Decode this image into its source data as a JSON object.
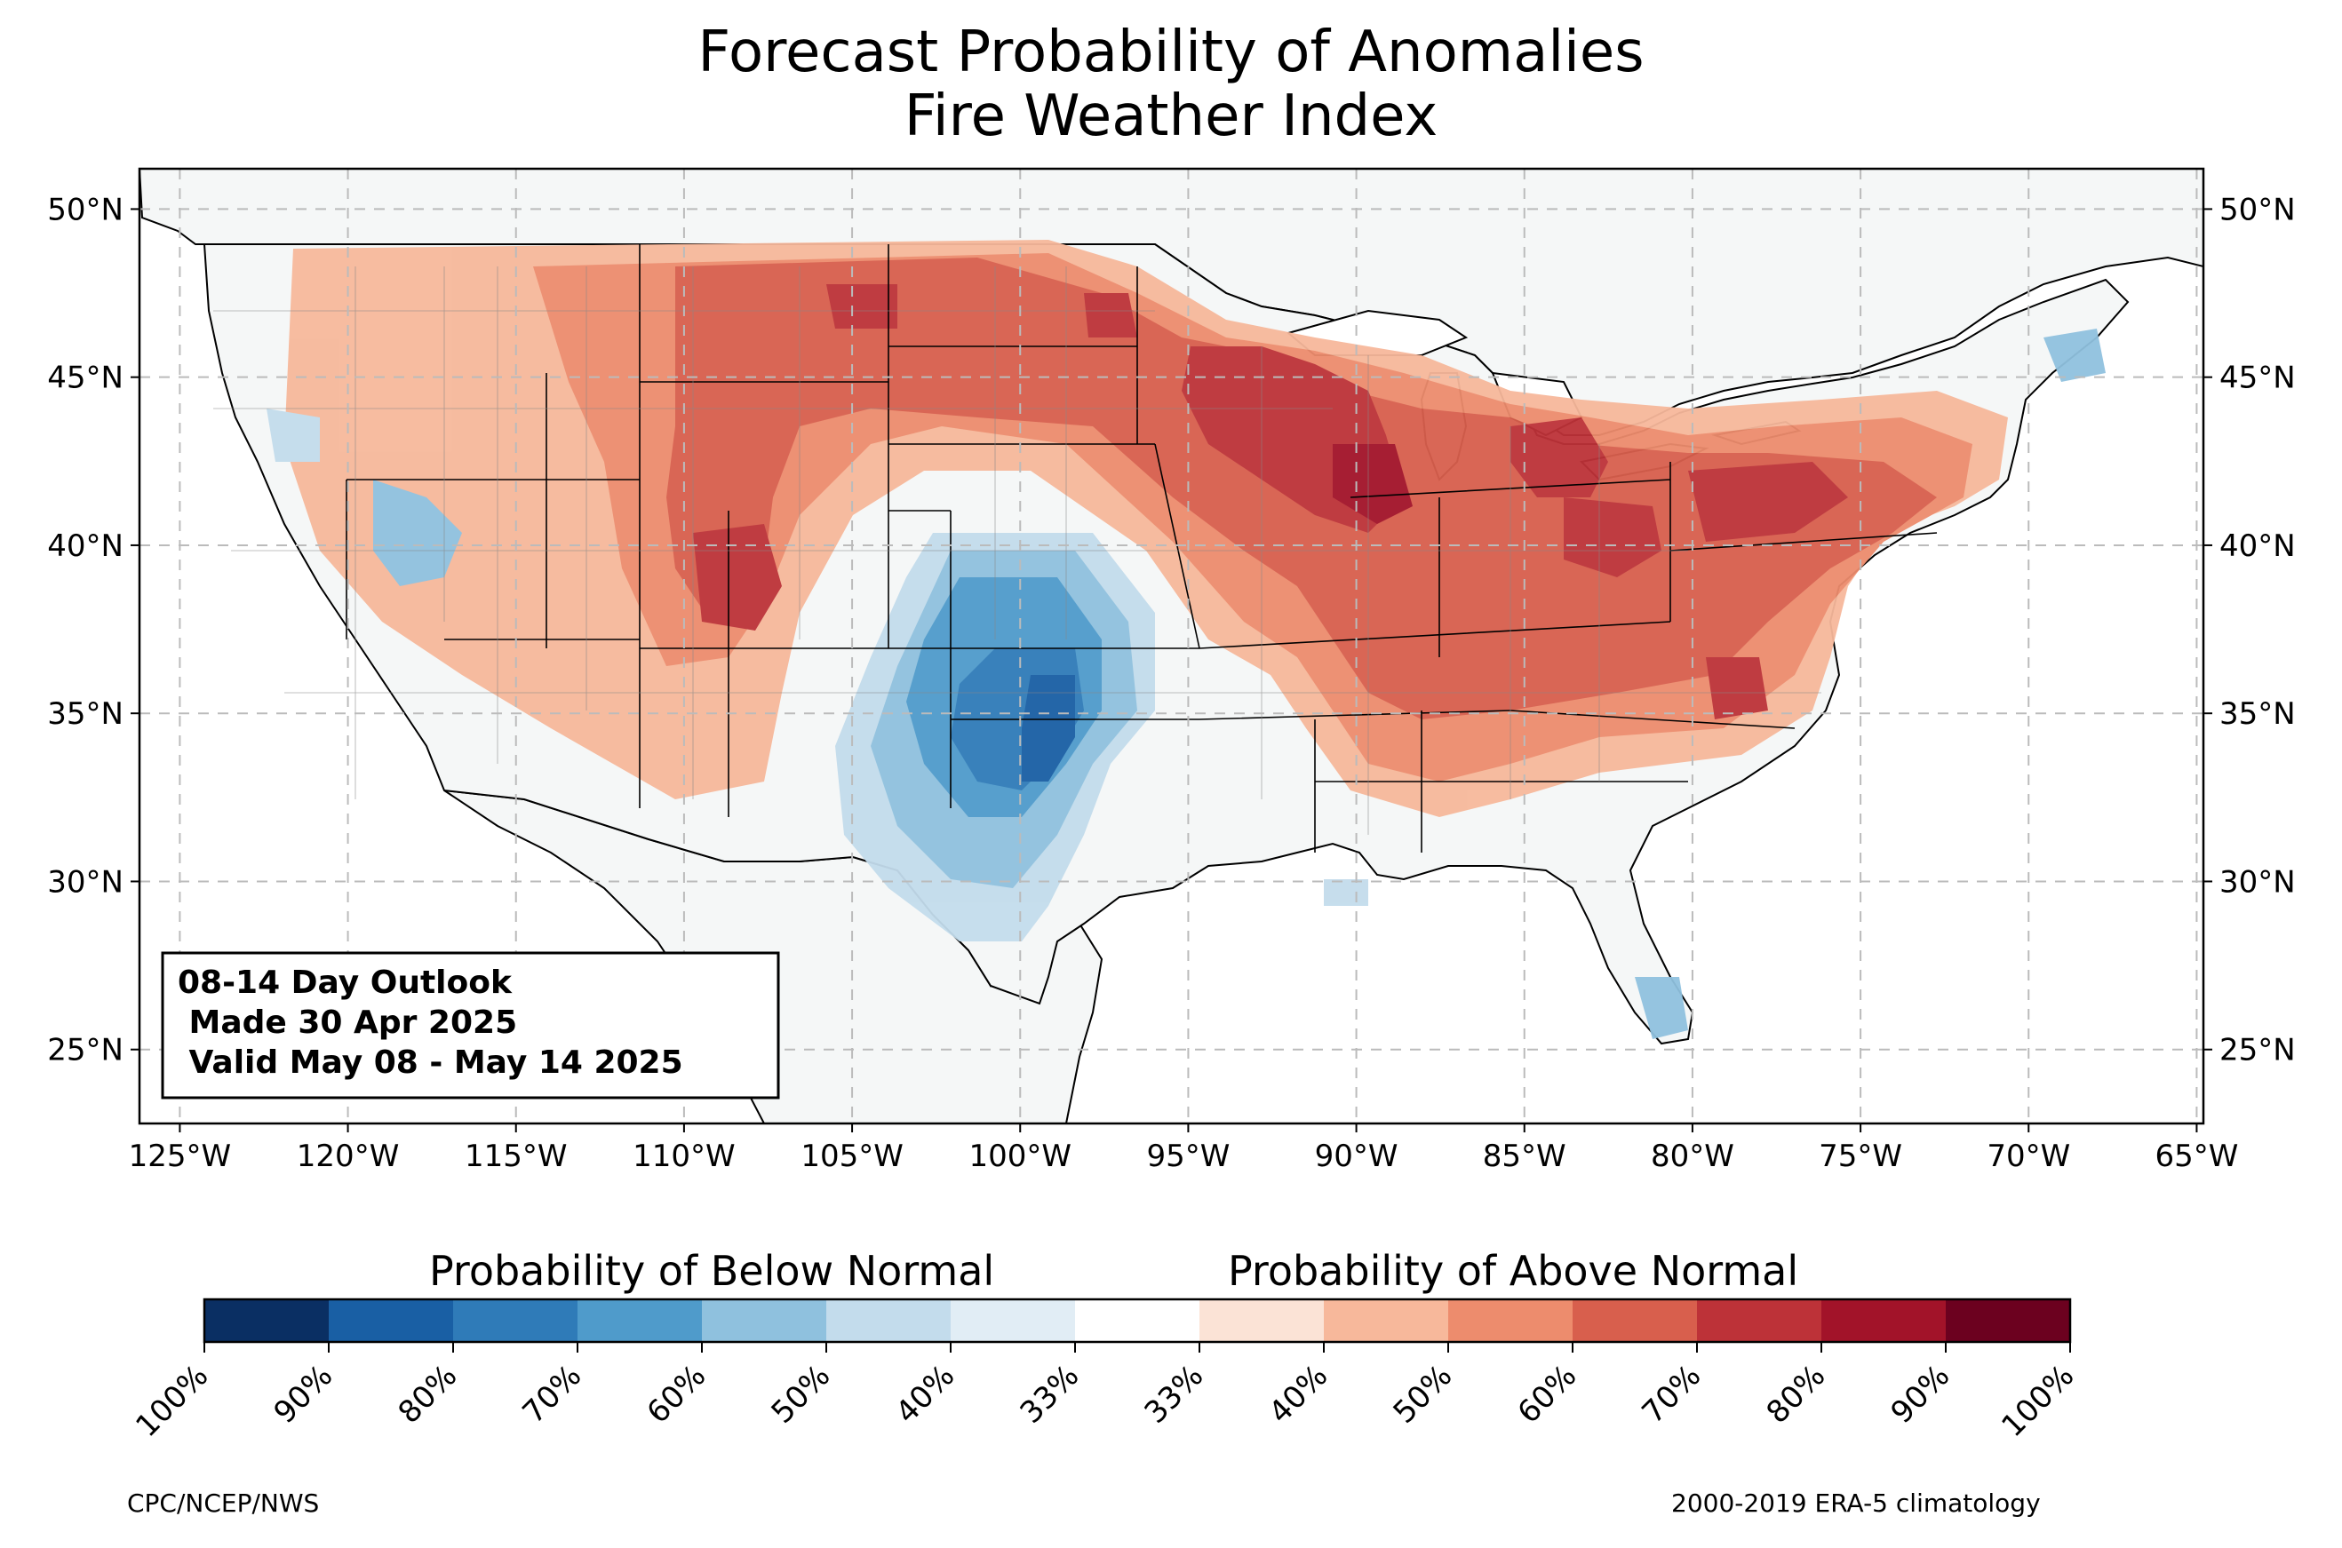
{
  "title": {
    "line1": "Forecast Probability of Anomalies",
    "line2": "Fire Weather Index"
  },
  "map": {
    "lon_ticks": [
      "125°W",
      "120°W",
      "115°W",
      "110°W",
      "105°W",
      "100°W",
      "95°W",
      "90°W",
      "85°W",
      "80°W",
      "75°W",
      "70°W",
      "65°W"
    ],
    "lat_ticks": [
      "50°N",
      "45°N",
      "40°N",
      "35°N",
      "30°N",
      "25°N"
    ],
    "lon_range": [
      -126.2,
      -64.8
    ],
    "lat_range": [
      22.8,
      51.2
    ],
    "gridlines": true,
    "ocean_color": "#ffffff",
    "land_color": "#f5f7f7"
  },
  "info_box": {
    "line1": "08-14 Day Outlook",
    "line2": " Made 30 Apr 2025",
    "line3": " Valid May 08 - May 14 2025"
  },
  "colorbar": {
    "below_label": "Probability of Below Normal",
    "above_label": "Probability of Above Normal",
    "tick_labels": [
      "100%",
      "90%",
      "80%",
      "70%",
      "60%",
      "50%",
      "40%",
      "33%",
      "33%",
      "40%",
      "50%",
      "60%",
      "70%",
      "80%",
      "90%",
      "100%"
    ],
    "colors": [
      "#0a2f63",
      "#195fa4",
      "#2f7bb8",
      "#4f9bcb",
      "#8fc1de",
      "#c3dcec",
      "#e1edf5",
      "#ffffff",
      "#fbe3d6",
      "#f7b89b",
      "#ed8c6d",
      "#d85f4d",
      "#bd3238",
      "#a21329",
      "#6c011f"
    ]
  },
  "footer": {
    "left": "CPC/NCEP/NWS",
    "right": "2000-2019 ERA-5 climatology"
  }
}
